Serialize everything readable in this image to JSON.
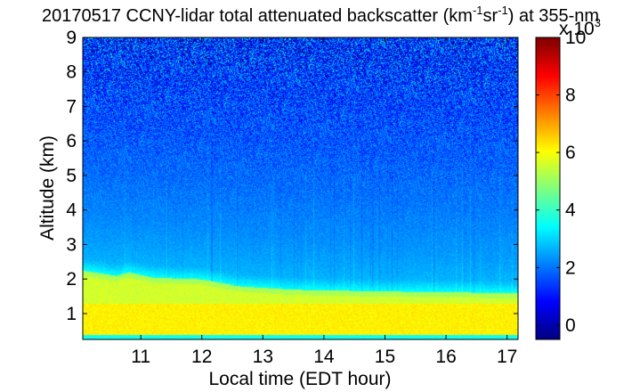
{
  "chart_data": {
    "type": "heatmap",
    "title": {
      "prefix": "20170517 CCNY-lidar total attenuated backscatter (km",
      "sup1": "-1",
      "mid": "sr",
      "sup2": "-1",
      "suffix": ") at 355-nm"
    },
    "xlabel": "Local time (EDT hour)",
    "ylabel": "Altitude (km)",
    "xlim": [
      10.05,
      17.18
    ],
    "ylim": [
      0.25,
      9.0
    ],
    "xticks": [
      11,
      12,
      13,
      14,
      15,
      16,
      17
    ],
    "yticks": [
      1,
      2,
      3,
      4,
      5,
      6,
      7,
      8,
      9
    ],
    "colorbar": {
      "range": [
        -0.5,
        10
      ],
      "ticks": [
        0,
        2,
        4,
        6,
        8,
        10
      ],
      "scale_label": "x 10",
      "scale_exponent": "3",
      "colormap": "jet"
    },
    "field": {
      "boundary_layer_top_km": [
        {
          "t": 10.05,
          "h": 2.25
        },
        {
          "t": 10.6,
          "h": 2.1
        },
        {
          "t": 10.8,
          "h": 2.2
        },
        {
          "t": 11.2,
          "h": 2.05
        },
        {
          "t": 12.0,
          "h": 2.0
        },
        {
          "t": 12.6,
          "h": 1.8
        },
        {
          "t": 13.5,
          "h": 1.7
        },
        {
          "t": 15.0,
          "h": 1.65
        },
        {
          "t": 17.18,
          "h": 1.6
        }
      ],
      "boundary_layer_value": 5.6,
      "lower_layer_value": 6.2,
      "free_troposphere_value_at_3km": 3.0,
      "value_at_9km": 1.3
    }
  }
}
